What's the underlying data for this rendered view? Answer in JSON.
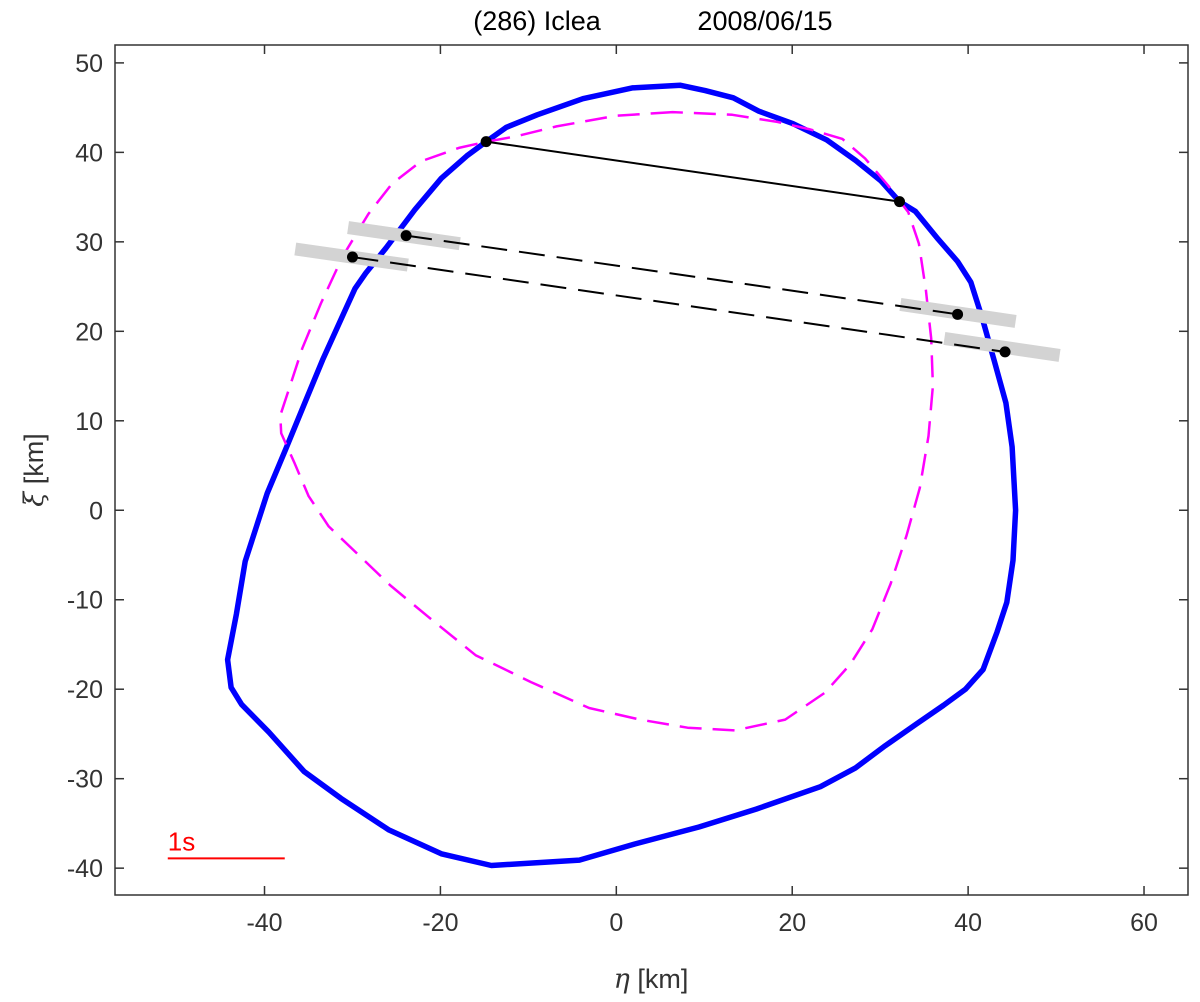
{
  "chart_data": {
    "type": "line",
    "title": "(286) Iclea",
    "date": "2008/06/15",
    "xlabel_symbol": "η",
    "xlabel_unit": " [km]",
    "ylabel_symbol": "ξ",
    "ylabel_unit": " [km]",
    "xlim": [
      -57,
      65
    ],
    "ylim": [
      -43,
      52
    ],
    "xticks": [
      -40,
      -20,
      0,
      20,
      40,
      60
    ],
    "yticks": [
      50,
      40,
      30,
      20,
      10,
      0,
      -10,
      -20,
      -30,
      -40
    ],
    "grid": false,
    "colors": {
      "blue_profile": "#0000ff",
      "magenta_profile": "#ff00ff",
      "chord": "#000000",
      "uncertainty": "#d3d3d3",
      "scale_bar": "#ff0000",
      "axes": "#333333"
    },
    "series": [
      {
        "style": "solid",
        "color": "#0000ff",
        "closed": true,
        "points": [
          [
            7.3,
            47.5
          ],
          [
            1.8,
            47.2
          ],
          [
            -3.8,
            46.0
          ],
          [
            -9,
            44.2
          ],
          [
            -12.5,
            42.8
          ],
          [
            -14.8,
            41.2
          ],
          [
            -17,
            39.6
          ],
          [
            -19.9,
            37.1
          ],
          [
            -22.9,
            33.6
          ],
          [
            -26.2,
            29.3
          ],
          [
            -28.5,
            26.5
          ],
          [
            -29.7,
            24.8
          ],
          [
            -31,
            22
          ],
          [
            -33.4,
            16.8
          ],
          [
            -35.3,
            12.3
          ],
          [
            -37.6,
            6.8
          ],
          [
            -39.7,
            1.9
          ],
          [
            -42.2,
            -5.7
          ],
          [
            -43.2,
            -11.6
          ],
          [
            -44.2,
            -16.7
          ],
          [
            -43.8,
            -19.8
          ],
          [
            -42.6,
            -21.7
          ],
          [
            -39.5,
            -24.8
          ],
          [
            -35.5,
            -29.2
          ],
          [
            -31.3,
            -32.2
          ],
          [
            -25.9,
            -35.7
          ],
          [
            -19.9,
            -38.4
          ],
          [
            -14.2,
            -39.7
          ],
          [
            -4.2,
            -39.1
          ],
          [
            2.1,
            -37.3
          ],
          [
            9.4,
            -35.4
          ],
          [
            15.9,
            -33.4
          ],
          [
            23.2,
            -30.9
          ],
          [
            27.2,
            -28.8
          ],
          [
            30.6,
            -26.3
          ],
          [
            34.1,
            -23.9
          ],
          [
            37.2,
            -21.8
          ],
          [
            39.7,
            -20
          ],
          [
            41.7,
            -17.8
          ],
          [
            43.3,
            -13.6
          ],
          [
            44.4,
            -10.3
          ],
          [
            45.1,
            -5.6
          ],
          [
            45.4,
            0
          ],
          [
            45.0,
            7.1
          ],
          [
            44.3,
            12
          ],
          [
            43.0,
            16.6
          ],
          [
            41.6,
            21.5
          ],
          [
            40.3,
            25.5
          ],
          [
            38.8,
            27.8
          ],
          [
            36.6,
            30.3
          ],
          [
            34.0,
            33.4
          ],
          [
            32.2,
            34.5
          ],
          [
            30.1,
            36.8
          ],
          [
            27.2,
            39.1
          ],
          [
            23.9,
            41.4
          ],
          [
            20.1,
            43.2
          ],
          [
            16.2,
            44.6
          ],
          [
            13.3,
            46.1
          ],
          [
            10.1,
            46.9
          ],
          [
            7.3,
            47.5
          ]
        ]
      },
      {
        "style": "dashed",
        "color": "#ff00ff",
        "closed": true,
        "points": [
          [
            6.4,
            44.5
          ],
          [
            0,
            44.1
          ],
          [
            -6.8,
            42.9
          ],
          [
            -11.4,
            41.8
          ],
          [
            -14.7,
            41.2
          ],
          [
            -17.9,
            40.5
          ],
          [
            -22.2,
            39
          ],
          [
            -25.5,
            36.5
          ],
          [
            -28.2,
            33.1
          ],
          [
            -31.1,
            28.4
          ],
          [
            -33.6,
            23.1
          ],
          [
            -35.7,
            18.1
          ],
          [
            -37.4,
            13
          ],
          [
            -38.2,
            10.6
          ],
          [
            -38.1,
            8.6
          ],
          [
            -36.6,
            5.3
          ],
          [
            -35,
            1.6
          ],
          [
            -32.7,
            -1.8
          ],
          [
            -29.4,
            -4.9
          ],
          [
            -25.7,
            -8.4
          ],
          [
            -21.4,
            -11.9
          ],
          [
            -16,
            -16.2
          ],
          [
            -9.7,
            -19.2
          ],
          [
            -3.1,
            -22.1
          ],
          [
            2.7,
            -23.4
          ],
          [
            8.1,
            -24.3
          ],
          [
            13.5,
            -24.6
          ],
          [
            19.2,
            -23.4
          ],
          [
            23.7,
            -20.4
          ],
          [
            26.6,
            -17.2
          ],
          [
            29.1,
            -13.3
          ],
          [
            31.2,
            -8.2
          ],
          [
            33,
            -2.8
          ],
          [
            34.5,
            2.5
          ],
          [
            35.5,
            8.3
          ],
          [
            36,
            13.9
          ],
          [
            35.8,
            19.2
          ],
          [
            35.2,
            24.6
          ],
          [
            34.4,
            29.8
          ],
          [
            33.2,
            33.3
          ],
          [
            30.9,
            36.3
          ],
          [
            28.3,
            39.3
          ],
          [
            25.7,
            41.5
          ],
          [
            21.9,
            42.6
          ],
          [
            18.3,
            43.4
          ],
          [
            13.2,
            44.2
          ],
          [
            6.4,
            44.5
          ]
        ]
      }
    ],
    "chords": [
      {
        "style": "solid",
        "start": [
          -14.8,
          41.2
        ],
        "end": [
          32.2,
          34.5
        ],
        "uncertainty": false
      },
      {
        "style": "dashed",
        "start": [
          -23.9,
          30.7
        ],
        "end": [
          38.8,
          21.9
        ],
        "uncertainty": true
      },
      {
        "style": "dashed",
        "start": [
          -30.0,
          28.3
        ],
        "end": [
          44.2,
          17.7
        ],
        "uncertainty": true
      }
    ],
    "uncertainty_bars": [
      {
        "from": [
          -30.5,
          31.6
        ],
        "to": [
          -17.8,
          29.8
        ]
      },
      {
        "from": [
          -36.5,
          29.2
        ],
        "to": [
          -23.7,
          27.4
        ]
      },
      {
        "from": [
          32.3,
          23.0
        ],
        "to": [
          45.4,
          21.1
        ]
      },
      {
        "from": [
          37.3,
          19.2
        ],
        "to": [
          50.4,
          17.3
        ]
      }
    ],
    "scale_bar": {
      "label": "1s",
      "from": [
        -51.0,
        -38.9
      ],
      "to": [
        -37.7,
        -38.9
      ]
    }
  }
}
